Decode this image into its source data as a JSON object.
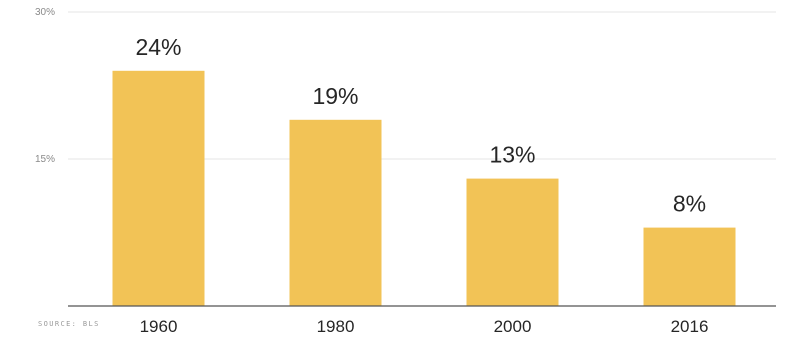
{
  "chart_data": {
    "type": "bar",
    "categories": [
      "1960",
      "1980",
      "2000",
      "2016"
    ],
    "values": [
      24,
      19,
      13,
      8
    ],
    "data_labels": [
      "24%",
      "19%",
      "13%",
      "8%"
    ],
    "ylim": [
      0,
      30
    ],
    "yticks": [
      {
        "value": 15,
        "label": "15%"
      },
      {
        "value": 30,
        "label": "30%"
      }
    ],
    "grid": true,
    "bar_color": "#F2C356",
    "grid_color": "#E6E6E6",
    "axis_color": "#555555",
    "text_color": "#262626",
    "tick_text_color": "#8a8a8a",
    "source": "SOURCE: BLS"
  }
}
